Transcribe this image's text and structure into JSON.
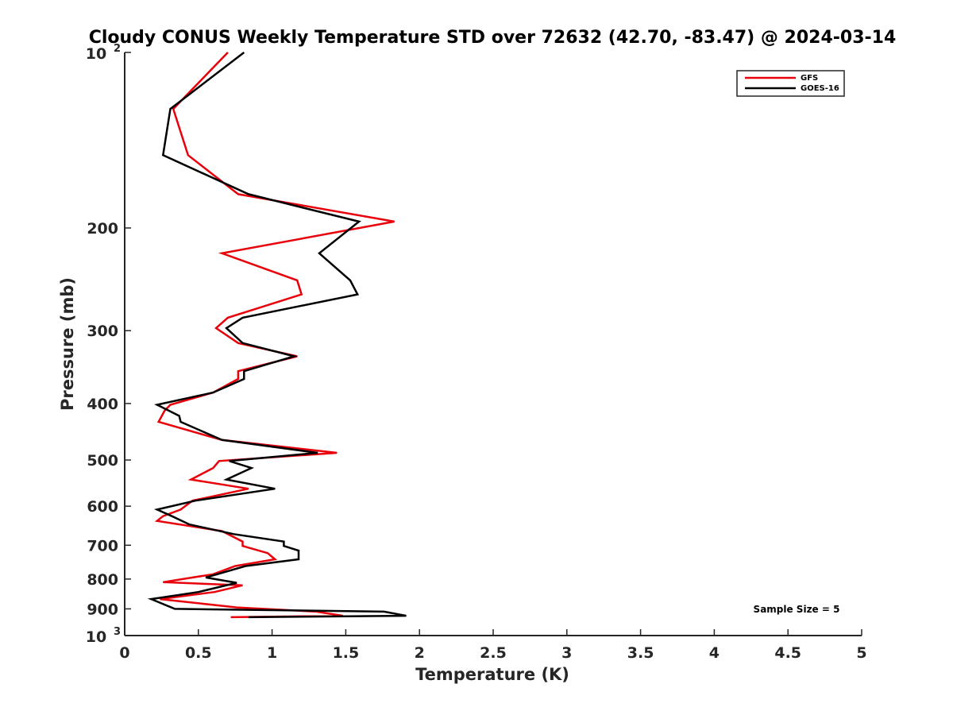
{
  "chart_data": {
    "type": "line",
    "title": "Cloudy CONUS Weekly Temperature STD over 72632 (42.70, -83.47) @ 2024-03-14",
    "xlabel": "Temperature (K)",
    "ylabel": "Pressure (mb)",
    "xlim": [
      0,
      5
    ],
    "ylim": [
      100,
      1000
    ],
    "y_scale": "log",
    "y_reversed": true,
    "x_ticks": [
      0,
      0.5,
      1,
      1.5,
      2,
      2.5,
      3,
      3.5,
      4,
      4.5,
      5
    ],
    "x_tick_labels": [
      "0",
      "0.5",
      "1",
      "1.5",
      "2",
      "2.5",
      "3",
      "3.5",
      "4",
      "4.5",
      "5"
    ],
    "y_ticks": [
      {
        "value": 100,
        "base": "10",
        "exp": "2"
      },
      {
        "value": 200,
        "label": "200"
      },
      {
        "value": 300,
        "label": "300"
      },
      {
        "value": 400,
        "label": "400"
      },
      {
        "value": 500,
        "label": "500"
      },
      {
        "value": 600,
        "label": "600"
      },
      {
        "value": 700,
        "label": "700"
      },
      {
        "value": 800,
        "label": "800"
      },
      {
        "value": 900,
        "label": "900"
      },
      {
        "value": 1000,
        "base": "10",
        "exp": "3"
      }
    ],
    "grid": false,
    "legend_position": "top-right",
    "annotation": "Sample Size = 5",
    "series": [
      {
        "name": "GFS",
        "color": "#e8000b",
        "points": [
          [
            0.7,
            100
          ],
          [
            0.33,
            125
          ],
          [
            0.43,
            150
          ],
          [
            0.77,
            175
          ],
          [
            1.83,
            195
          ],
          [
            0.66,
            221
          ],
          [
            1.17,
            246
          ],
          [
            1.2,
            260
          ],
          [
            0.7,
            285
          ],
          [
            0.62,
            297
          ],
          [
            0.77,
            315
          ],
          [
            1.17,
            332
          ],
          [
            0.77,
            352
          ],
          [
            0.77,
            363
          ],
          [
            0.6,
            383
          ],
          [
            0.31,
            402
          ],
          [
            0.27,
            412
          ],
          [
            0.23,
            430
          ],
          [
            0.66,
            462
          ],
          [
            1.44,
            486
          ],
          [
            0.64,
            502
          ],
          [
            0.6,
            516
          ],
          [
            0.45,
            540
          ],
          [
            0.84,
            560
          ],
          [
            0.46,
            587
          ],
          [
            0.38,
            608
          ],
          [
            0.26,
            624
          ],
          [
            0.22,
            636
          ],
          [
            0.66,
            662
          ],
          [
            0.8,
            690
          ],
          [
            0.8,
            702
          ],
          [
            0.97,
            722
          ],
          [
            1.02,
            740
          ],
          [
            0.75,
            760
          ],
          [
            0.6,
            785
          ],
          [
            0.26,
            810
          ],
          [
            0.8,
            820
          ],
          [
            0.61,
            842
          ],
          [
            0.24,
            866
          ],
          [
            0.76,
            895
          ],
          [
            1.3,
            910
          ],
          [
            1.48,
            925
          ],
          [
            0.72,
            930
          ]
        ]
      },
      {
        "name": "GOES-16",
        "color": "#000000",
        "points": [
          [
            0.81,
            100
          ],
          [
            0.31,
            125
          ],
          [
            0.26,
            150
          ],
          [
            0.84,
            175
          ],
          [
            1.59,
            195
          ],
          [
            1.32,
            221
          ],
          [
            1.53,
            246
          ],
          [
            1.58,
            260
          ],
          [
            0.8,
            285
          ],
          [
            0.69,
            297
          ],
          [
            0.8,
            315
          ],
          [
            1.15,
            332
          ],
          [
            0.81,
            352
          ],
          [
            0.81,
            363
          ],
          [
            0.6,
            383
          ],
          [
            0.22,
            402
          ],
          [
            0.37,
            420
          ],
          [
            0.38,
            430
          ],
          [
            0.66,
            462
          ],
          [
            1.31,
            486
          ],
          [
            0.71,
            502
          ],
          [
            0.86,
            516
          ],
          [
            0.69,
            540
          ],
          [
            1.02,
            560
          ],
          [
            0.48,
            587
          ],
          [
            0.22,
            608
          ],
          [
            0.32,
            624
          ],
          [
            0.44,
            645
          ],
          [
            0.74,
            670
          ],
          [
            1.08,
            690
          ],
          [
            1.08,
            702
          ],
          [
            1.18,
            715
          ],
          [
            1.18,
            740
          ],
          [
            0.82,
            760
          ],
          [
            0.55,
            795
          ],
          [
            0.76,
            812
          ],
          [
            0.5,
            842
          ],
          [
            0.18,
            866
          ],
          [
            0.34,
            900
          ],
          [
            1.76,
            910
          ],
          [
            1.91,
            925
          ],
          [
            0.84,
            930
          ]
        ]
      }
    ]
  }
}
